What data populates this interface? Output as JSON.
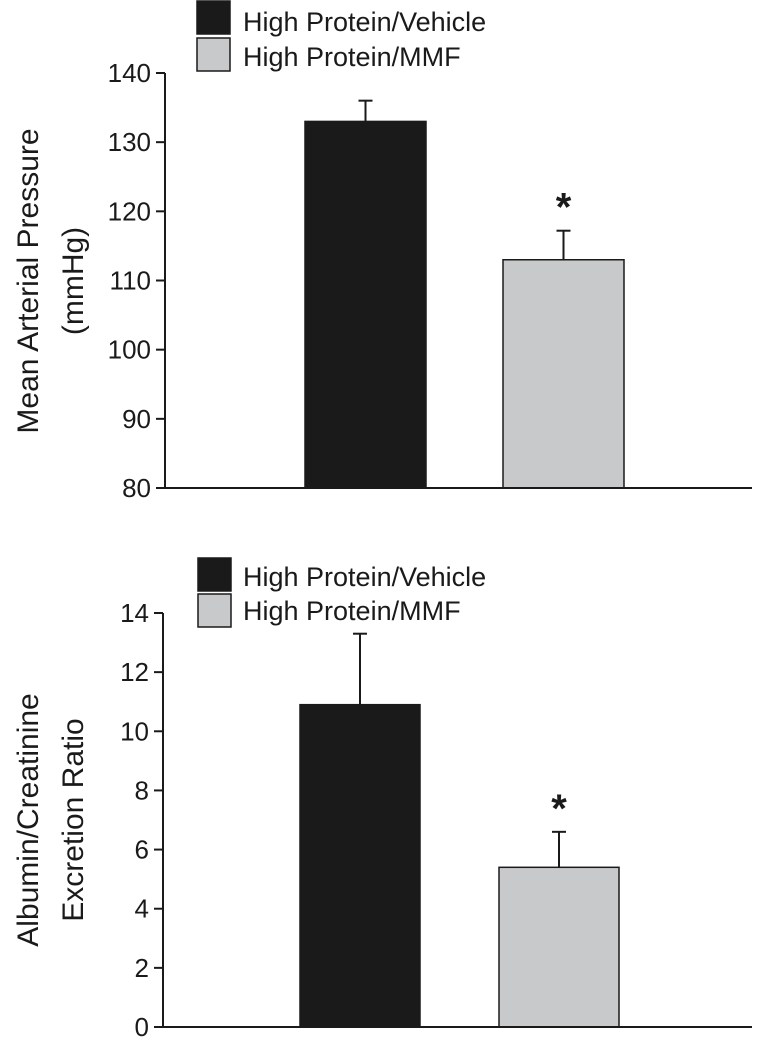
{
  "chart_data": [
    {
      "type": "bar",
      "ylabel": [
        "Mean Arterial Pressure",
        "(mmHg)"
      ],
      "ylim": [
        80,
        140
      ],
      "yticks": [
        80,
        90,
        100,
        110,
        120,
        130,
        140
      ],
      "legend": {
        "placement": "top-left"
      },
      "series": [
        {
          "name": "High Protein/Vehicle",
          "color": "#1a1a1a",
          "value": 133,
          "error": 3,
          "annotation": ""
        },
        {
          "name": "High Protein/MMF",
          "color": "#c8c9cb",
          "value": 113,
          "error": 4.2,
          "annotation": "*"
        }
      ]
    },
    {
      "type": "bar",
      "ylabel": [
        "Albumin/Creatinine",
        "Excretion Ratio"
      ],
      "ylim": [
        0,
        14
      ],
      "yticks": [
        0,
        2,
        4,
        6,
        8,
        10,
        12,
        14
      ],
      "legend": {
        "placement": "top-left"
      },
      "series": [
        {
          "name": "High Protein/Vehicle",
          "color": "#1a1a1a",
          "value": 10.9,
          "error": 2.4,
          "annotation": ""
        },
        {
          "name": "High Protein/MMF",
          "color": "#c8c9cb",
          "value": 5.4,
          "error": 1.2,
          "annotation": "*"
        }
      ]
    }
  ]
}
